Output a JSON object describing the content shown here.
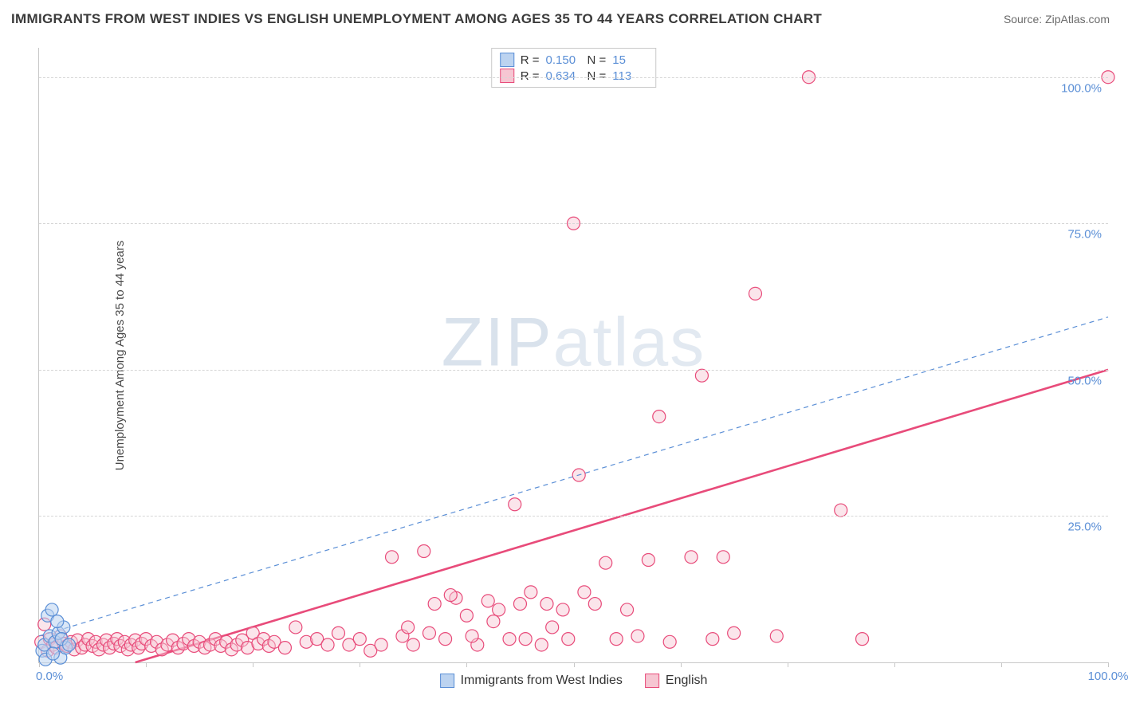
{
  "title": "IMMIGRANTS FROM WEST INDIES VS ENGLISH UNEMPLOYMENT AMONG AGES 35 TO 44 YEARS CORRELATION CHART",
  "source": "Source: ZipAtlas.com",
  "y_label": "Unemployment Among Ages 35 to 44 years",
  "watermark_a": "ZIP",
  "watermark_b": "atlas",
  "chart": {
    "type": "scatter",
    "xlim": [
      0,
      100
    ],
    "ylim": [
      0,
      105
    ],
    "background_color": "#ffffff",
    "grid_color": "#d6d6d6",
    "grid_dash": "4,4",
    "axis_color": "#c8c8c8",
    "y_ticks": [
      0,
      25,
      50,
      75,
      100
    ],
    "y_tick_labels": [
      "0.0%",
      "25.0%",
      "50.0%",
      "75.0%",
      "100.0%"
    ],
    "x_ticks": [
      0,
      10,
      20,
      30,
      40,
      50,
      60,
      70,
      80,
      90,
      100
    ],
    "x_tick_labels": {
      "0": "0.0%",
      "100": "100.0%"
    },
    "marker_radius": 8,
    "marker_stroke_width": 1.2,
    "tick_label_color": "#5b8fd6",
    "tick_label_fontsize": 15
  },
  "series": {
    "blue": {
      "label": "Immigrants from West Indies",
      "fill": "#bcd3f0",
      "stroke": "#5b8fd6",
      "fill_opacity": 0.55,
      "R": "0.150",
      "N": "15",
      "trend": {
        "x1": 0,
        "y1": 4.5,
        "x2": 100,
        "y2": 59,
        "stroke": "#5b8fd6",
        "width": 1.2,
        "dash": "6,5"
      },
      "points": [
        [
          0.3,
          2.0
        ],
        [
          0.5,
          3.0
        ],
        [
          0.8,
          8.0
        ],
        [
          1.0,
          4.5
        ],
        [
          1.2,
          9.0
        ],
        [
          1.5,
          3.5
        ],
        [
          1.8,
          5.0
        ],
        [
          2.0,
          0.8
        ],
        [
          2.3,
          6.0
        ],
        [
          2.5,
          2.5
        ],
        [
          0.6,
          0.5
        ],
        [
          1.3,
          1.5
        ],
        [
          1.7,
          7.0
        ],
        [
          2.1,
          4.0
        ],
        [
          2.8,
          3.0
        ]
      ]
    },
    "pink": {
      "label": "English",
      "fill": "#f6c6d2",
      "stroke": "#e84b7a",
      "fill_opacity": 0.45,
      "R": "0.634",
      "N": "113",
      "trend": {
        "x1": 9,
        "y1": 0,
        "x2": 100,
        "y2": 50,
        "stroke": "#e84b7a",
        "width": 2.6,
        "dash": ""
      },
      "points": [
        [
          0.2,
          3.5
        ],
        [
          0.5,
          6.5
        ],
        [
          0.8,
          2.0
        ],
        [
          1.0,
          4.0
        ],
        [
          1.3,
          3.0
        ],
        [
          1.6,
          2.5
        ],
        [
          2.0,
          4.5
        ],
        [
          2.3,
          3.2
        ],
        [
          2.6,
          2.8
        ],
        [
          3.0,
          3.5
        ],
        [
          3.3,
          2.2
        ],
        [
          3.6,
          3.8
        ],
        [
          4.0,
          2.5
        ],
        [
          4.3,
          3.0
        ],
        [
          4.6,
          4.0
        ],
        [
          5.0,
          2.8
        ],
        [
          5.3,
          3.5
        ],
        [
          5.6,
          2.2
        ],
        [
          6.0,
          3.0
        ],
        [
          6.3,
          3.8
        ],
        [
          6.6,
          2.5
        ],
        [
          7.0,
          3.2
        ],
        [
          7.3,
          4.0
        ],
        [
          7.6,
          2.8
        ],
        [
          8.0,
          3.5
        ],
        [
          8.3,
          2.2
        ],
        [
          8.6,
          3.0
        ],
        [
          9.0,
          3.8
        ],
        [
          9.3,
          2.5
        ],
        [
          9.6,
          3.2
        ],
        [
          10.0,
          4.0
        ],
        [
          10.5,
          2.8
        ],
        [
          11.0,
          3.5
        ],
        [
          11.5,
          2.2
        ],
        [
          12.0,
          3.0
        ],
        [
          12.5,
          3.8
        ],
        [
          13.0,
          2.5
        ],
        [
          13.5,
          3.2
        ],
        [
          14.0,
          4.0
        ],
        [
          14.5,
          2.8
        ],
        [
          15.0,
          3.5
        ],
        [
          15.5,
          2.5
        ],
        [
          16.0,
          3.0
        ],
        [
          16.5,
          4.0
        ],
        [
          17.0,
          2.8
        ],
        [
          17.5,
          3.5
        ],
        [
          18.0,
          2.2
        ],
        [
          18.5,
          3.0
        ],
        [
          19.0,
          3.8
        ],
        [
          19.5,
          2.5
        ],
        [
          20.0,
          5.0
        ],
        [
          20.5,
          3.2
        ],
        [
          21.0,
          4.0
        ],
        [
          21.5,
          2.8
        ],
        [
          22.0,
          3.5
        ],
        [
          23.0,
          2.5
        ],
        [
          24.0,
          6.0
        ],
        [
          25.0,
          3.5
        ],
        [
          26.0,
          4.0
        ],
        [
          27.0,
          3.0
        ],
        [
          28.0,
          5.0
        ],
        [
          29.0,
          3.0
        ],
        [
          30.0,
          4.0
        ],
        [
          31.0,
          2.0
        ],
        [
          32.0,
          3.0
        ],
        [
          33.0,
          18.0
        ],
        [
          34.0,
          4.5
        ],
        [
          35.0,
          3.0
        ],
        [
          36.0,
          19.0
        ],
        [
          37.0,
          10.0
        ],
        [
          38.0,
          4.0
        ],
        [
          39.0,
          11.0
        ],
        [
          40.0,
          8.0
        ],
        [
          41.0,
          3.0
        ],
        [
          42.0,
          10.5
        ],
        [
          43.0,
          9.0
        ],
        [
          44.0,
          4.0
        ],
        [
          44.5,
          27.0
        ],
        [
          45.0,
          10.0
        ],
        [
          46.0,
          12.0
        ],
        [
          47.0,
          3.0
        ],
        [
          48.0,
          6.0
        ],
        [
          49.0,
          9.0
        ],
        [
          50.0,
          75.0
        ],
        [
          50.5,
          32.0
        ],
        [
          51.0,
          12.0
        ],
        [
          52.0,
          10.0
        ],
        [
          53.0,
          17.0
        ],
        [
          54.0,
          4.0
        ],
        [
          55.0,
          9.0
        ],
        [
          56.0,
          4.5
        ],
        [
          57.0,
          17.5
        ],
        [
          58.0,
          42.0
        ],
        [
          59.0,
          3.5
        ],
        [
          61.0,
          18.0
        ],
        [
          62.0,
          49.0
        ],
        [
          63.0,
          4.0
        ],
        [
          64.0,
          18.0
        ],
        [
          65.0,
          5.0
        ],
        [
          67.0,
          63.0
        ],
        [
          69.0,
          4.5
        ],
        [
          72.0,
          100.0
        ],
        [
          75.0,
          26.0
        ],
        [
          77.0,
          4.0
        ],
        [
          100.0,
          100.0
        ],
        [
          34.5,
          6.0
        ],
        [
          36.5,
          5.0
        ],
        [
          38.5,
          11.5
        ],
        [
          40.5,
          4.5
        ],
        [
          42.5,
          7.0
        ],
        [
          45.5,
          4.0
        ],
        [
          47.5,
          10.0
        ],
        [
          49.5,
          4.0
        ]
      ]
    }
  },
  "legend_top_label_r": "R =",
  "legend_top_label_n": "N ="
}
